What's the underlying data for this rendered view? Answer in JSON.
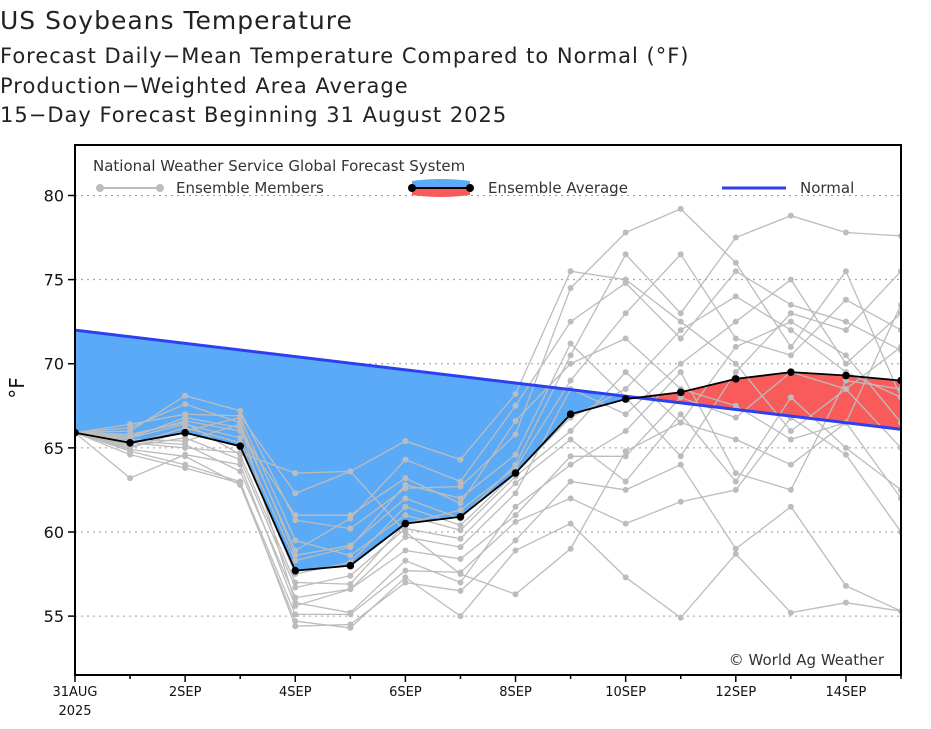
{
  "chart_data": {
    "type": "line",
    "title": "US Soybeans Temperature",
    "subtitles": [
      "Forecast Daily−Mean Temperature Compared to Normal (°F)",
      "Production−Weighted Area Average",
      "15−Day Forecast Beginning 31 August 2025"
    ],
    "ylabel": "°F",
    "ylim": [
      51.5,
      83
    ],
    "xlim": [
      0,
      15
    ],
    "yticks": [
      55,
      60,
      65,
      70,
      75,
      80
    ],
    "xticks": [
      {
        "x": 0,
        "label": "31AUG",
        "label2": "2025"
      },
      {
        "x": 2,
        "label": "2SEP"
      },
      {
        "x": 4,
        "label": "4SEP"
      },
      {
        "x": 6,
        "label": "6SEP"
      },
      {
        "x": 8,
        "label": "8SEP"
      },
      {
        "x": 10,
        "label": "10SEP"
      },
      {
        "x": 12,
        "label": "12SEP"
      },
      {
        "x": 14,
        "label": "14SEP"
      }
    ],
    "legend": {
      "source": "National Weather Service Global Forecast System",
      "members": "Ensemble Members",
      "average": "Ensemble Average",
      "normal": "Normal"
    },
    "credit": "© World Ag Weather",
    "normal": {
      "start": 72.0,
      "end": 66.1
    },
    "ensemble_average": {
      "name": "Ensemble Average",
      "x": [
        0,
        1,
        2,
        3,
        4,
        5,
        6,
        7,
        8,
        9,
        10,
        11,
        12,
        13,
        14,
        15
      ],
      "values": [
        65.9,
        65.3,
        65.9,
        65.1,
        57.7,
        58.0,
        60.5,
        60.9,
        63.5,
        67.0,
        67.9,
        68.3,
        69.1,
        69.5,
        69.3,
        69.0
      ]
    },
    "ensemble_members": [
      [
        65.9,
        65.6,
        66.8,
        66.2,
        58.9,
        60.8,
        64.3,
        63.0,
        67.5,
        72.5,
        74.8,
        71.5,
        75.5,
        73.5,
        72.5,
        70.8
      ],
      [
        65.9,
        63.2,
        64.6,
        64.0,
        55.6,
        56.6,
        58.9,
        58.4,
        61.0,
        64.5,
        64.5,
        68.0,
        66.8,
        69.5,
        68.5,
        65.0
      ],
      [
        65.9,
        66.2,
        67.6,
        66.5,
        58.6,
        59.2,
        62.0,
        60.8,
        64.0,
        70.5,
        76.5,
        73.0,
        77.5,
        78.8,
        77.8,
        77.6
      ],
      [
        65.9,
        64.8,
        64.0,
        63.0,
        54.4,
        54.5,
        57.0,
        56.5,
        59.5,
        63.0,
        62.5,
        64.0,
        59.0,
        61.5,
        56.8,
        55.3
      ],
      [
        65.9,
        65.8,
        66.5,
        64.6,
        57.0,
        56.9,
        60.5,
        61.3,
        63.8,
        69.0,
        73.0,
        76.5,
        71.5,
        70.5,
        73.8,
        72.0
      ],
      [
        65.9,
        65.0,
        66.0,
        66.8,
        59.5,
        58.6,
        61.0,
        60.1,
        63.3,
        66.0,
        69.5,
        66.5,
        65.5,
        64.0,
        66.5,
        62.0
      ],
      [
        65.9,
        65.4,
        65.2,
        63.6,
        56.1,
        56.6,
        59.7,
        59.1,
        62.3,
        68.5,
        67.0,
        70.0,
        72.5,
        75.0,
        70.0,
        73.0
      ],
      [
        65.9,
        66.0,
        68.1,
        67.2,
        60.7,
        60.2,
        62.6,
        62.7,
        65.8,
        74.5,
        77.8,
        79.2,
        76.0,
        71.0,
        75.5,
        68.0
      ],
      [
        65.9,
        64.6,
        63.8,
        62.9,
        55.1,
        55.1,
        57.7,
        57.6,
        60.6,
        62.0,
        60.5,
        61.8,
        62.5,
        66.8,
        64.6,
        60.0
      ],
      [
        65.9,
        65.2,
        66.2,
        65.3,
        57.5,
        58.2,
        61.5,
        60.4,
        63.5,
        66.8,
        68.5,
        72.0,
        74.0,
        72.0,
        69.5,
        68.0
      ],
      [
        65.9,
        66.4,
        67.0,
        66.9,
        62.3,
        63.6,
        65.4,
        64.3,
        68.2,
        75.5,
        75.0,
        72.5,
        70.0,
        66.0,
        68.5,
        71.0
      ],
      [
        65.9,
        64.9,
        64.5,
        62.8,
        54.7,
        54.3,
        57.3,
        55.0,
        58.9,
        60.5,
        57.3,
        54.9,
        58.7,
        55.2,
        55.8,
        55.3
      ],
      [
        65.9,
        65.6,
        66.4,
        65.6,
        58.3,
        59.1,
        62.8,
        62.0,
        64.6,
        71.2,
        68.0,
        64.5,
        69.5,
        73.0,
        72.0,
        75.5
      ],
      [
        65.9,
        65.1,
        65.6,
        64.3,
        56.7,
        57.4,
        60.2,
        59.6,
        62.9,
        65.5,
        63.0,
        67.0,
        63.0,
        68.0,
        65.0,
        62.5
      ],
      [
        65.9,
        65.7,
        66.6,
        66.0,
        61.0,
        61.0,
        63.2,
        61.7,
        66.6,
        70.0,
        71.5,
        68.5,
        67.5,
        65.5,
        66.5,
        73.5
      ],
      [
        65.9,
        65.3,
        65.0,
        64.7,
        63.5,
        63.6,
        60.0,
        57.5,
        56.3,
        59.0,
        64.8,
        66.5,
        71.0,
        72.5,
        70.5,
        66.5
      ],
      [
        65.9,
        65.5,
        65.4,
        66.4,
        55.8,
        55.2,
        58.3,
        57.0,
        61.5,
        64.0,
        66.0,
        69.5,
        63.5,
        62.5,
        69.0,
        68.5
      ]
    ],
    "colors": {
      "below_fill": "#5aaaf7",
      "above_fill": "#f95a5a",
      "normal_line": "#2d3ff0",
      "members": "#bcbcbc",
      "average": "#000000",
      "grid": "#9a9a9a"
    }
  }
}
